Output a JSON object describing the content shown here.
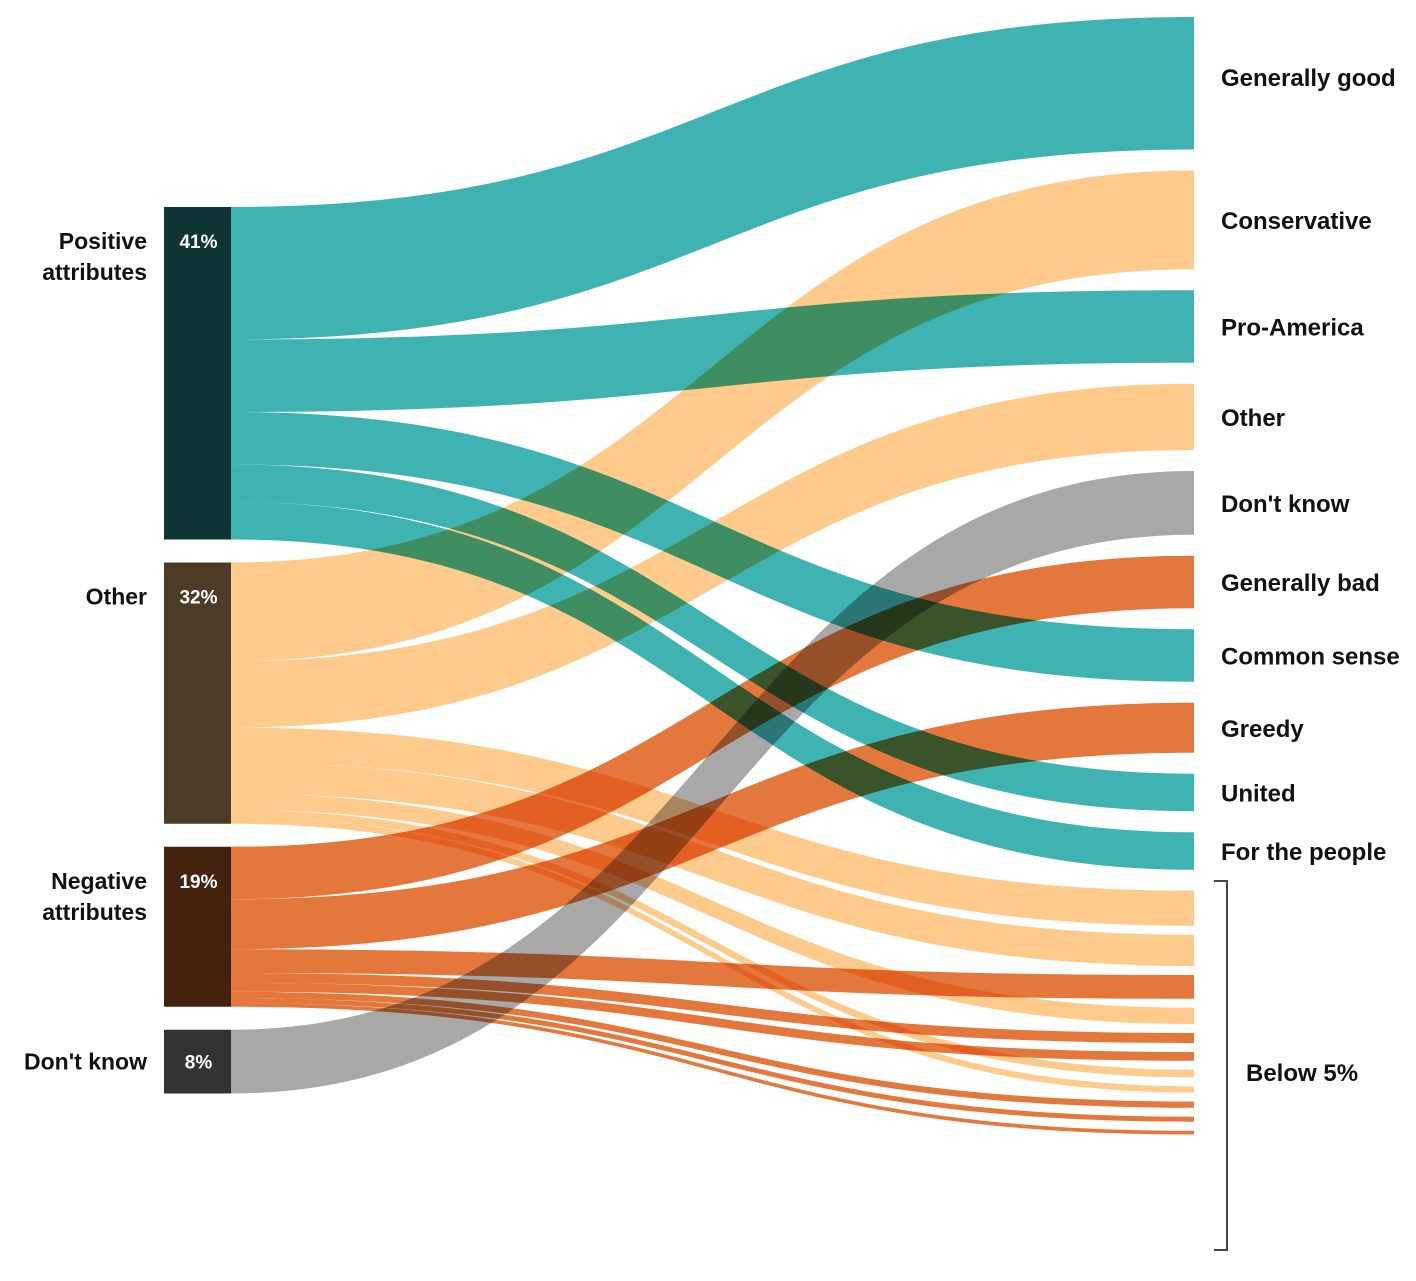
{
  "chart_data": {
    "type": "sankey",
    "colors": {
      "positive_flow": "#20a6a4",
      "other_flow": "#fec27a",
      "negative_flow": "#e0621c",
      "dontknow_flow": "#9a9a9a",
      "positive_node": "#0e3534",
      "other_node": "#4c3b27",
      "negative_node": "#43220e",
      "dontknow_node": "#333333"
    },
    "sources": [
      {
        "id": "positive",
        "label_lines": [
          "Positive",
          "attributes"
        ],
        "percent": "41%",
        "color": "#0e3534"
      },
      {
        "id": "other",
        "label_lines": [
          "Other"
        ],
        "percent": "32%",
        "color": "#4c3b27"
      },
      {
        "id": "negative",
        "label_lines": [
          "Negative",
          "attributes"
        ],
        "percent": "19%",
        "color": "#43220e"
      },
      {
        "id": "dontknow",
        "label_lines": [
          "Don't know"
        ],
        "percent": "8%",
        "color": "#333333"
      }
    ],
    "targets": [
      {
        "id": "generally_good",
        "label": "Generally good",
        "value": 10.6
      },
      {
        "id": "conservative",
        "label": "Conservative",
        "value": 7.9
      },
      {
        "id": "pro_america",
        "label": "Pro-America",
        "value": 5.8
      },
      {
        "id": "other_t",
        "label": "Other",
        "value": 5.3
      },
      {
        "id": "dont_know_t",
        "label": "Don't know",
        "value": 5.1
      },
      {
        "id": "generally_bad",
        "label": "Generally bad",
        "value": 4.2
      },
      {
        "id": "common_sense",
        "label": "Common sense",
        "value": 4.2
      },
      {
        "id": "greedy",
        "label": "Greedy",
        "value": 4.0
      },
      {
        "id": "united",
        "label": "United",
        "value": 3.0
      },
      {
        "id": "for_the_people",
        "label": "For the people",
        "value": 3.0
      },
      {
        "id": "o1",
        "label": "",
        "value": 2.8
      },
      {
        "id": "o2",
        "label": "",
        "value": 2.5
      },
      {
        "id": "n1",
        "label": "",
        "value": 1.9
      },
      {
        "id": "o3",
        "label": "",
        "value": 1.3
      },
      {
        "id": "n2",
        "label": "",
        "value": 0.8
      },
      {
        "id": "n3",
        "label": "",
        "value": 0.7
      },
      {
        "id": "o4",
        "label": "",
        "value": 0.6
      },
      {
        "id": "o5",
        "label": "",
        "value": 0.5
      },
      {
        "id": "n4",
        "label": "",
        "value": 0.5
      },
      {
        "id": "n5",
        "label": "",
        "value": 0.4
      },
      {
        "id": "n6",
        "label": "",
        "value": 0.3
      }
    ],
    "flows": [
      {
        "source": "positive",
        "target": "generally_good",
        "value": 10.6
      },
      {
        "source": "positive",
        "target": "pro_america",
        "value": 5.8
      },
      {
        "source": "positive",
        "target": "common_sense",
        "value": 4.2
      },
      {
        "source": "positive",
        "target": "united",
        "value": 3.0
      },
      {
        "source": "positive",
        "target": "for_the_people",
        "value": 3.0
      },
      {
        "source": "other",
        "target": "conservative",
        "value": 7.9
      },
      {
        "source": "other",
        "target": "other_t",
        "value": 5.3
      },
      {
        "source": "other",
        "target": "o1",
        "value": 2.8
      },
      {
        "source": "other",
        "target": "o2",
        "value": 2.5
      },
      {
        "source": "other",
        "target": "o3",
        "value": 1.3
      },
      {
        "source": "other",
        "target": "o4",
        "value": 0.6
      },
      {
        "source": "other",
        "target": "o5",
        "value": 0.5
      },
      {
        "source": "negative",
        "target": "generally_bad",
        "value": 4.2
      },
      {
        "source": "negative",
        "target": "greedy",
        "value": 4.0
      },
      {
        "source": "negative",
        "target": "n1",
        "value": 1.9
      },
      {
        "source": "negative",
        "target": "n2",
        "value": 0.8
      },
      {
        "source": "negative",
        "target": "n3",
        "value": 0.7
      },
      {
        "source": "negative",
        "target": "n4",
        "value": 0.5
      },
      {
        "source": "negative",
        "target": "n5",
        "value": 0.4
      },
      {
        "source": "negative",
        "target": "n6",
        "value": 0.3
      },
      {
        "source": "dontknow",
        "target": "dont_know_t",
        "value": 5.1
      }
    ],
    "bracket_label": "Below 5%"
  }
}
